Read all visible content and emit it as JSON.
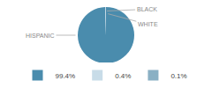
{
  "chart_data": {
    "type": "pie",
    "categories": [
      "HISPANIC",
      "BLACK",
      "WHITE"
    ],
    "values": [
      99.4,
      0.4,
      0.1
    ],
    "value_labels": [
      "99.4%",
      "0.4%",
      "0.1%"
    ],
    "colors": [
      "#4a8cad",
      "#c8dce8",
      "#8ab0c4"
    ],
    "annotations": [
      "HISPANIC",
      "BLACK",
      "WHITE"
    ],
    "legend": "bottom"
  }
}
